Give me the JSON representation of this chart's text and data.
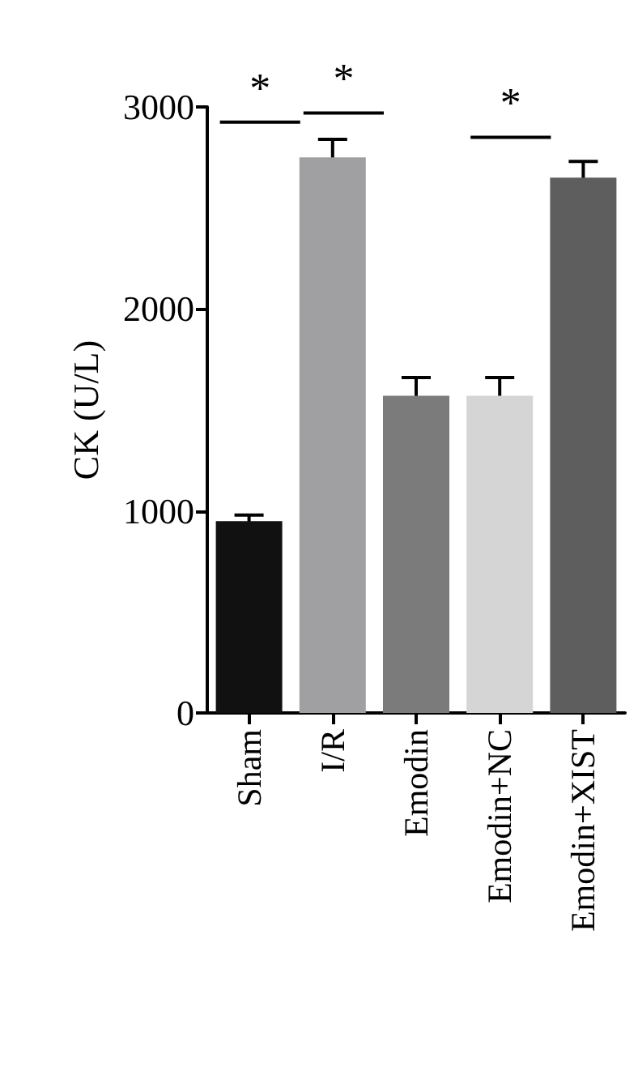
{
  "chart_data": {
    "type": "bar",
    "ylabel": "CK (U/L)",
    "categories": [
      "Sham",
      "I/R",
      "Emodin",
      "Emodin+NC",
      "Emodin+XIST"
    ],
    "values": [
      950,
      2750,
      1570,
      1570,
      2650
    ],
    "colors": [
      "#111111",
      "#a0a0a2",
      "#7b7b7b",
      "#d5d5d5",
      "#5e5e5e"
    ],
    "errors": [
      30,
      90,
      90,
      90,
      80
    ],
    "ylim": [
      0,
      3000
    ],
    "yticks": [
      0,
      1000,
      2000,
      3000
    ],
    "grid": false,
    "annotations": [
      "*",
      "*",
      "*"
    ]
  }
}
